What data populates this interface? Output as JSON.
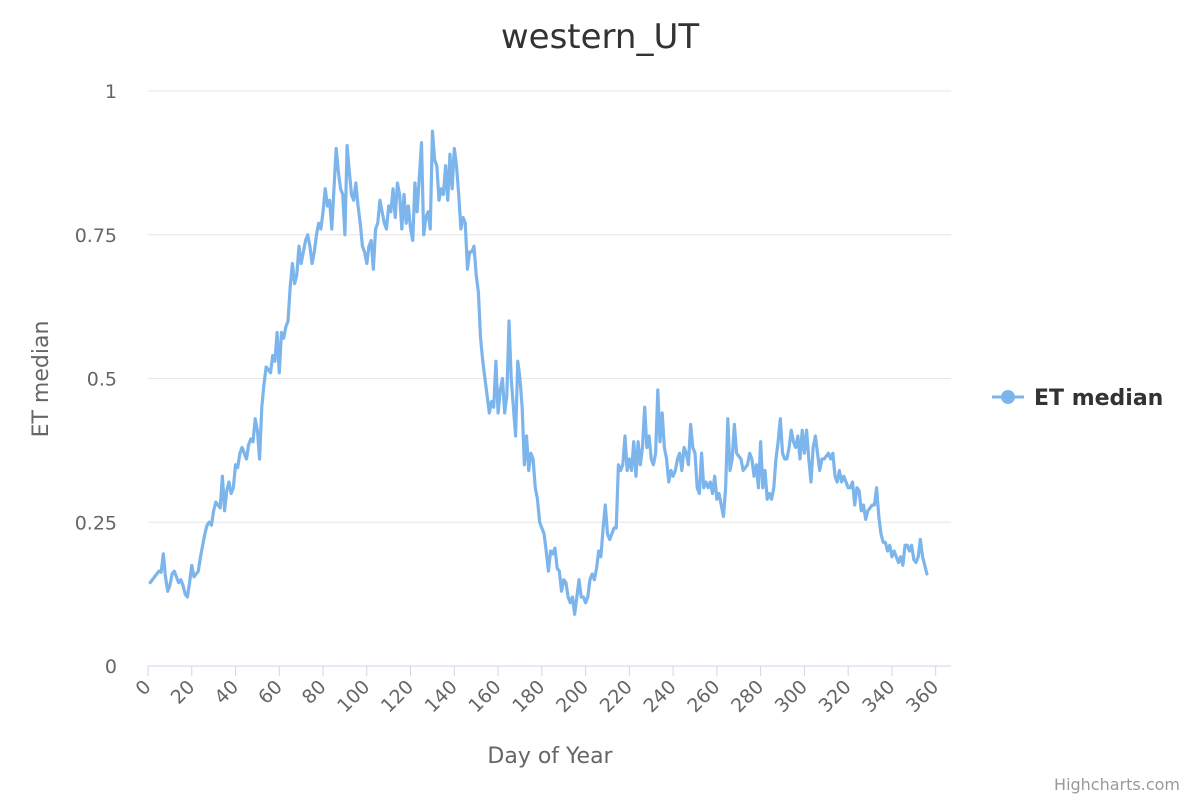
{
  "chart_data": {
    "type": "line",
    "title": "western_UT",
    "xlabel": "Day of Year",
    "ylabel": "ET median",
    "xlim": [
      0,
      367
    ],
    "ylim": [
      0,
      1
    ],
    "x_ticks": [
      0,
      20,
      40,
      60,
      80,
      100,
      120,
      140,
      160,
      180,
      200,
      220,
      240,
      260,
      280,
      300,
      320,
      340,
      360
    ],
    "y_ticks": [
      0,
      0.25,
      0.5,
      0.75,
      1
    ],
    "y_tick_labels": [
      "0",
      "0.25",
      "0.5",
      "0.75",
      "1"
    ],
    "grid": "horizontal",
    "legend_position": "right",
    "series": [
      {
        "name": "ET median",
        "color": "#7cb5ec",
        "x_start": 1,
        "x_step": 1,
        "values": [
          0.145,
          0.15,
          0.155,
          0.16,
          0.165,
          0.163,
          0.195,
          0.155,
          0.13,
          0.14,
          0.16,
          0.165,
          0.155,
          0.145,
          0.15,
          0.14,
          0.125,
          0.12,
          0.145,
          0.175,
          0.155,
          0.16,
          0.165,
          0.19,
          0.21,
          0.23,
          0.245,
          0.25,
          0.245,
          0.27,
          0.285,
          0.28,
          0.275,
          0.33,
          0.27,
          0.305,
          0.32,
          0.3,
          0.31,
          0.35,
          0.345,
          0.37,
          0.38,
          0.37,
          0.36,
          0.385,
          0.395,
          0.39,
          0.43,
          0.41,
          0.36,
          0.45,
          0.49,
          0.52,
          0.515,
          0.51,
          0.54,
          0.53,
          0.58,
          0.51,
          0.58,
          0.57,
          0.59,
          0.6,
          0.66,
          0.7,
          0.665,
          0.68,
          0.73,
          0.7,
          0.72,
          0.74,
          0.75,
          0.73,
          0.7,
          0.72,
          0.75,
          0.77,
          0.76,
          0.79,
          0.83,
          0.8,
          0.81,
          0.76,
          0.83,
          0.9,
          0.86,
          0.83,
          0.82,
          0.75,
          0.905,
          0.86,
          0.82,
          0.81,
          0.84,
          0.8,
          0.77,
          0.73,
          0.72,
          0.7,
          0.73,
          0.74,
          0.69,
          0.76,
          0.77,
          0.81,
          0.79,
          0.77,
          0.76,
          0.8,
          0.79,
          0.83,
          0.78,
          0.84,
          0.82,
          0.76,
          0.82,
          0.77,
          0.8,
          0.76,
          0.74,
          0.84,
          0.79,
          0.85,
          0.91,
          0.75,
          0.78,
          0.79,
          0.76,
          0.93,
          0.88,
          0.87,
          0.81,
          0.83,
          0.82,
          0.87,
          0.81,
          0.89,
          0.83,
          0.9,
          0.87,
          0.82,
          0.76,
          0.78,
          0.77,
          0.69,
          0.72,
          0.72,
          0.73,
          0.68,
          0.65,
          0.57,
          0.53,
          0.5,
          0.47,
          0.44,
          0.46,
          0.45,
          0.53,
          0.44,
          0.48,
          0.5,
          0.44,
          0.47,
          0.6,
          0.5,
          0.45,
          0.4,
          0.53,
          0.5,
          0.45,
          0.35,
          0.4,
          0.34,
          0.37,
          0.36,
          0.31,
          0.29,
          0.25,
          0.24,
          0.23,
          0.2,
          0.165,
          0.2,
          0.195,
          0.205,
          0.17,
          0.165,
          0.13,
          0.15,
          0.145,
          0.12,
          0.11,
          0.12,
          0.09,
          0.12,
          0.15,
          0.12,
          0.12,
          0.11,
          0.12,
          0.15,
          0.16,
          0.15,
          0.17,
          0.2,
          0.19,
          0.24,
          0.28,
          0.23,
          0.22,
          0.23,
          0.24,
          0.24,
          0.35,
          0.34,
          0.35,
          0.4,
          0.34,
          0.36,
          0.34,
          0.39,
          0.33,
          0.39,
          0.35,
          0.38,
          0.45,
          0.38,
          0.4,
          0.36,
          0.35,
          0.37,
          0.48,
          0.39,
          0.44,
          0.38,
          0.36,
          0.32,
          0.34,
          0.33,
          0.34,
          0.36,
          0.37,
          0.34,
          0.38,
          0.37,
          0.35,
          0.42,
          0.38,
          0.37,
          0.31,
          0.3,
          0.37,
          0.31,
          0.32,
          0.31,
          0.32,
          0.3,
          0.33,
          0.29,
          0.3,
          0.28,
          0.26,
          0.31,
          0.43,
          0.34,
          0.36,
          0.42,
          0.37,
          0.365,
          0.36,
          0.34,
          0.345,
          0.35,
          0.37,
          0.36,
          0.33,
          0.35,
          0.31,
          0.39,
          0.31,
          0.34,
          0.29,
          0.3,
          0.29,
          0.31,
          0.36,
          0.39,
          0.43,
          0.37,
          0.36,
          0.36,
          0.38,
          0.41,
          0.39,
          0.38,
          0.4,
          0.36,
          0.41,
          0.37,
          0.41,
          0.36,
          0.32,
          0.38,
          0.4,
          0.37,
          0.34,
          0.36,
          0.36,
          0.365,
          0.37,
          0.36,
          0.37,
          0.33,
          0.32,
          0.34,
          0.32,
          0.33,
          0.32,
          0.31,
          0.31,
          0.32,
          0.28,
          0.31,
          0.305,
          0.27,
          0.28,
          0.255,
          0.27,
          0.275,
          0.28,
          0.28,
          0.31,
          0.26,
          0.23,
          0.215,
          0.215,
          0.2,
          0.21,
          0.19,
          0.2,
          0.19,
          0.18,
          0.19,
          0.175,
          0.21,
          0.21,
          0.2,
          0.21,
          0.185,
          0.18,
          0.19,
          0.22,
          0.19,
          0.175,
          0.16
        ]
      }
    ]
  },
  "credits": "Highcharts.com"
}
